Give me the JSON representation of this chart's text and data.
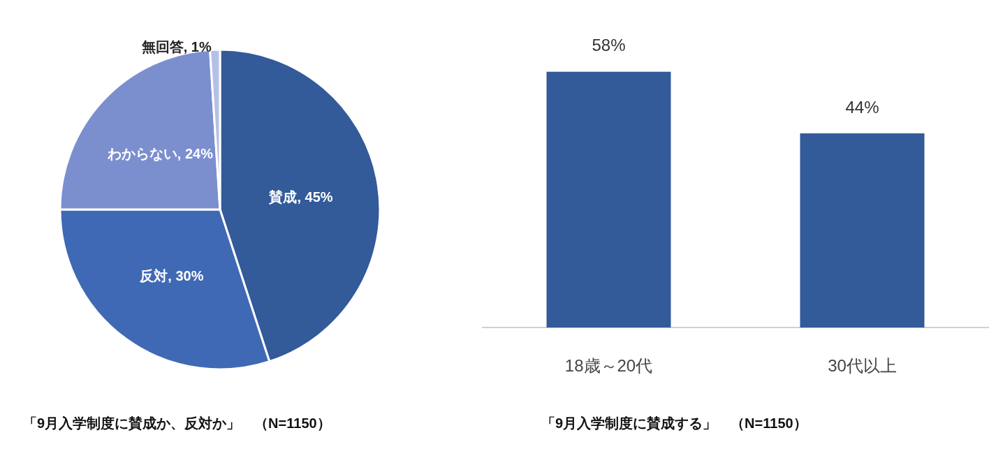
{
  "chart_data": [
    {
      "type": "pie",
      "title": "「9月入学制度に賛成か、反対か」　（N=1150）",
      "categories": [
        "賛成",
        "反対",
        "わからない",
        "無回答"
      ],
      "values": [
        45,
        30,
        24,
        1
      ],
      "colors": [
        "#335a99",
        "#3f69b5",
        "#7b8fcf",
        "#b4c1e6"
      ],
      "value_labels": [
        "45%",
        "30%",
        "24%",
        "1%"
      ],
      "legend": false
    },
    {
      "type": "bar",
      "title": "「9月入学制度に賛成する」　（N=1150）",
      "categories": [
        "18歳～20代",
        "30代以上"
      ],
      "values": [
        58,
        44
      ],
      "color": "#335a99",
      "value_labels": [
        "58%",
        "44%"
      ],
      "legend": false,
      "grid": false
    }
  ]
}
